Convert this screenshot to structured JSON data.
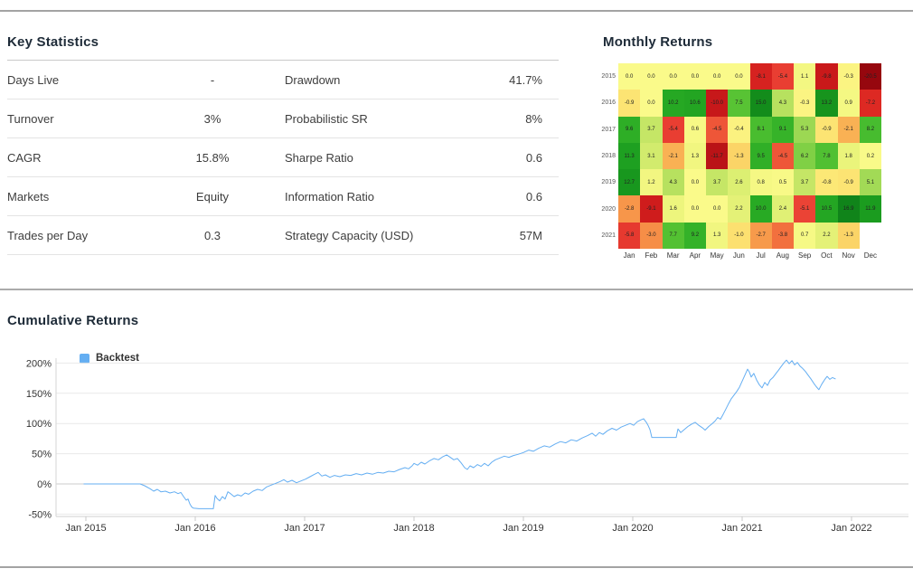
{
  "key_statistics": {
    "title": "Key Statistics",
    "rows": [
      {
        "label1": "Days Live",
        "value1": "-",
        "label2": "Drawdown",
        "value2": "41.7%"
      },
      {
        "label1": "Turnover",
        "value1": "3%",
        "label2": "Probabilistic SR",
        "value2": "8%"
      },
      {
        "label1": "CAGR",
        "value1": "15.8%",
        "label2": "Sharpe Ratio",
        "value2": "0.6"
      },
      {
        "label1": "Markets",
        "value1": "Equity",
        "label2": "Information Ratio",
        "value2": "0.6"
      },
      {
        "label1": "Trades per Day",
        "value1": "0.3",
        "label2": "Strategy Capacity (USD)",
        "value2": "57M"
      }
    ]
  },
  "chart_data": [
    {
      "type": "heatmap",
      "title": "Monthly Returns",
      "units": "%",
      "rows": [
        "2015",
        "2016",
        "2017",
        "2018",
        "2019",
        "2020",
        "2021"
      ],
      "columns": [
        "Jan",
        "Feb",
        "Mar",
        "Apr",
        "May",
        "Jun",
        "Jul",
        "Aug",
        "Sep",
        "Oct",
        "Nov",
        "Dec"
      ],
      "values": [
        [
          0.0,
          0.0,
          0.0,
          0.0,
          0.0,
          0.0,
          -8.1,
          -5.4,
          1.1,
          -9.8,
          -0.3,
          -20.5
        ],
        [
          -0.9,
          0.0,
          10.2,
          10.6,
          -10.0,
          7.5,
          15.0,
          4.3,
          -0.3,
          13.2,
          0.9,
          -7.2
        ],
        [
          9.6,
          3.7,
          -5.4,
          0.6,
          -4.5,
          -0.4,
          8.1,
          9.1,
          5.3,
          -0.9,
          -2.1,
          8.2
        ],
        [
          11.3,
          3.1,
          -2.1,
          1.3,
          -11.7,
          -1.3,
          9.5,
          -4.5,
          6.2,
          7.8,
          1.8,
          0.2
        ],
        [
          12.7,
          1.2,
          4.3,
          0.0,
          3.7,
          2.6,
          0.8,
          0.5,
          3.7,
          -0.8,
          -0.9,
          5.1
        ],
        [
          -2.8,
          -9.1,
          1.6,
          0.0,
          0.0,
          2.2,
          10.0,
          2.4,
          -5.1,
          10.5,
          16.9,
          11.9
        ],
        [
          -5.8,
          -3.0,
          7.7,
          9.2,
          1.3,
          -1.0,
          -2.7,
          -3.8,
          0.7,
          2.2,
          -1.3,
          null
        ]
      ],
      "color_scale": {
        "negative": "#c81e1e",
        "zero": "#fafa8a",
        "positive": "#1e9a1e"
      }
    },
    {
      "type": "line",
      "title": "Cumulative Returns",
      "grid": true,
      "legend_position": "top-left",
      "ylim": [
        -54,
        220
      ],
      "xlim": [
        2014.73,
        2022.5
      ],
      "y_ticks": [
        {
          "label": "200%",
          "value": 200
        },
        {
          "label": "150%",
          "value": 150
        },
        {
          "label": "100%",
          "value": 100
        },
        {
          "label": "50%",
          "value": 50
        },
        {
          "label": "0%",
          "value": 0
        },
        {
          "label": "-50%",
          "value": -50
        }
      ],
      "x_ticks": [
        {
          "label": "Jan 2015",
          "year": 2015
        },
        {
          "label": "Jan 2016",
          "year": 2016
        },
        {
          "label": "Jan 2017",
          "year": 2017
        },
        {
          "label": "Jan 2018",
          "year": 2018
        },
        {
          "label": "Jan 2019",
          "year": 2019
        },
        {
          "label": "Jan 2020",
          "year": 2020
        },
        {
          "label": "Jan 2021",
          "year": 2021
        },
        {
          "label": "Jan 2022",
          "year": 2022
        }
      ],
      "series": [
        {
          "name": "Backtest",
          "color": "#64aef2",
          "points": [
            [
              2014.983,
              0
            ],
            [
              2015.496,
              0
            ],
            [
              2015.537,
              -3
            ],
            [
              2015.587,
              -8
            ],
            [
              2015.62,
              -12
            ],
            [
              2015.653,
              -9
            ],
            [
              2015.686,
              -13
            ],
            [
              2015.727,
              -12
            ],
            [
              2015.769,
              -15
            ],
            [
              2015.81,
              -13
            ],
            [
              2015.843,
              -16
            ],
            [
              2015.868,
              -14
            ],
            [
              2015.893,
              -21
            ],
            [
              2015.917,
              -27
            ],
            [
              2015.934,
              -25
            ],
            [
              2015.95,
              -33
            ],
            [
              2015.967,
              -38
            ],
            [
              2015.983,
              -40
            ],
            [
              2016.033,
              -41
            ],
            [
              2016.165,
              -41
            ],
            [
              2016.182,
              -19
            ],
            [
              2016.198,
              -24
            ],
            [
              2016.223,
              -28
            ],
            [
              2016.248,
              -21
            ],
            [
              2016.273,
              -25
            ],
            [
              2016.298,
              -13
            ],
            [
              2016.322,
              -16
            ],
            [
              2016.355,
              -21
            ],
            [
              2016.388,
              -18
            ],
            [
              2016.421,
              -20
            ],
            [
              2016.455,
              -15
            ],
            [
              2016.488,
              -17
            ],
            [
              2016.529,
              -12
            ],
            [
              2016.57,
              -9
            ],
            [
              2016.612,
              -11
            ],
            [
              2016.653,
              -5
            ],
            [
              2016.694,
              -2
            ],
            [
              2016.736,
              1
            ],
            [
              2016.777,
              4
            ],
            [
              2016.81,
              7
            ],
            [
              2016.843,
              3
            ],
            [
              2016.884,
              6
            ],
            [
              2016.926,
              2
            ],
            [
              2016.967,
              5
            ],
            [
              2017.008,
              8
            ],
            [
              2017.05,
              12
            ],
            [
              2017.091,
              16
            ],
            [
              2017.124,
              19
            ],
            [
              2017.157,
              13
            ],
            [
              2017.19,
              15
            ],
            [
              2017.231,
              11
            ],
            [
              2017.273,
              14
            ],
            [
              2017.322,
              12
            ],
            [
              2017.372,
              15
            ],
            [
              2017.421,
              14
            ],
            [
              2017.471,
              17
            ],
            [
              2017.521,
              15
            ],
            [
              2017.57,
              18
            ],
            [
              2017.62,
              16
            ],
            [
              2017.669,
              19
            ],
            [
              2017.719,
              18
            ],
            [
              2017.769,
              21
            ],
            [
              2017.818,
              20
            ],
            [
              2017.868,
              24
            ],
            [
              2017.917,
              27
            ],
            [
              2017.95,
              25
            ],
            [
              2017.983,
              30
            ],
            [
              2018.0,
              34
            ],
            [
              2018.033,
              31
            ],
            [
              2018.066,
              36
            ],
            [
              2018.099,
              33
            ],
            [
              2018.14,
              38
            ],
            [
              2018.182,
              42
            ],
            [
              2018.223,
              40
            ],
            [
              2018.264,
              45
            ],
            [
              2018.298,
              48
            ],
            [
              2018.331,
              44
            ],
            [
              2018.364,
              40
            ],
            [
              2018.397,
              42
            ],
            [
              2018.43,
              35
            ],
            [
              2018.463,
              27
            ],
            [
              2018.488,
              24
            ],
            [
              2018.512,
              30
            ],
            [
              2018.545,
              27
            ],
            [
              2018.579,
              32
            ],
            [
              2018.612,
              29
            ],
            [
              2018.645,
              34
            ],
            [
              2018.678,
              30
            ],
            [
              2018.711,
              36
            ],
            [
              2018.744,
              40
            ],
            [
              2018.785,
              43
            ],
            [
              2018.826,
              46
            ],
            [
              2018.868,
              44
            ],
            [
              2018.909,
              47
            ],
            [
              2018.95,
              49
            ],
            [
              2019.0,
              52
            ],
            [
              2019.05,
              56
            ],
            [
              2019.091,
              54
            ],
            [
              2019.14,
              59
            ],
            [
              2019.19,
              63
            ],
            [
              2019.24,
              61
            ],
            [
              2019.289,
              66
            ],
            [
              2019.339,
              70
            ],
            [
              2019.388,
              68
            ],
            [
              2019.438,
              73
            ],
            [
              2019.488,
              71
            ],
            [
              2019.537,
              76
            ],
            [
              2019.587,
              80
            ],
            [
              2019.628,
              84
            ],
            [
              2019.661,
              79
            ],
            [
              2019.694,
              85
            ],
            [
              2019.727,
              82
            ],
            [
              2019.769,
              88
            ],
            [
              2019.81,
              92
            ],
            [
              2019.851,
              89
            ],
            [
              2019.893,
              94
            ],
            [
              2019.934,
              97
            ],
            [
              2019.975,
              100
            ],
            [
              2020.008,
              97
            ],
            [
              2020.041,
              103
            ],
            [
              2020.074,
              106
            ],
            [
              2020.099,
              108
            ],
            [
              2020.124,
              102
            ],
            [
              2020.14,
              97
            ],
            [
              2020.157,
              90
            ],
            [
              2020.174,
              77
            ],
            [
              2020.397,
              77
            ],
            [
              2020.413,
              91
            ],
            [
              2020.438,
              85
            ],
            [
              2020.471,
              90
            ],
            [
              2020.504,
              95
            ],
            [
              2020.537,
              99
            ],
            [
              2020.57,
              102
            ],
            [
              2020.603,
              97
            ],
            [
              2020.636,
              93
            ],
            [
              2020.661,
              89
            ],
            [
              2020.694,
              95
            ],
            [
              2020.727,
              100
            ],
            [
              2020.752,
              104
            ],
            [
              2020.777,
              110
            ],
            [
              2020.802,
              107
            ],
            [
              2020.826,
              115
            ],
            [
              2020.851,
              124
            ],
            [
              2020.876,
              133
            ],
            [
              2020.901,
              141
            ],
            [
              2020.926,
              147
            ],
            [
              2020.95,
              153
            ],
            [
              2020.975,
              160
            ],
            [
              2021.0,
              170
            ],
            [
              2021.025,
              180
            ],
            [
              2021.05,
              190
            ],
            [
              2021.066,
              185
            ],
            [
              2021.083,
              177
            ],
            [
              2021.107,
              183
            ],
            [
              2021.132,
              172
            ],
            [
              2021.157,
              164
            ],
            [
              2021.182,
              159
            ],
            [
              2021.207,
              168
            ],
            [
              2021.231,
              163
            ],
            [
              2021.256,
              172
            ],
            [
              2021.281,
              176
            ],
            [
              2021.306,
              182
            ],
            [
              2021.331,
              188
            ],
            [
              2021.355,
              194
            ],
            [
              2021.38,
              200
            ],
            [
              2021.405,
              205
            ],
            [
              2021.43,
              199
            ],
            [
              2021.455,
              204
            ],
            [
              2021.479,
              197
            ],
            [
              2021.504,
              201
            ],
            [
              2021.529,
              195
            ],
            [
              2021.554,
              191
            ],
            [
              2021.579,
              186
            ],
            [
              2021.603,
              180
            ],
            [
              2021.628,
              174
            ],
            [
              2021.653,
              167
            ],
            [
              2021.678,
              161
            ],
            [
              2021.702,
              156
            ],
            [
              2021.727,
              165
            ],
            [
              2021.752,
              172
            ],
            [
              2021.777,
              178
            ],
            [
              2021.802,
              173
            ],
            [
              2021.826,
              176
            ],
            [
              2021.851,
              174
            ]
          ]
        }
      ]
    }
  ]
}
